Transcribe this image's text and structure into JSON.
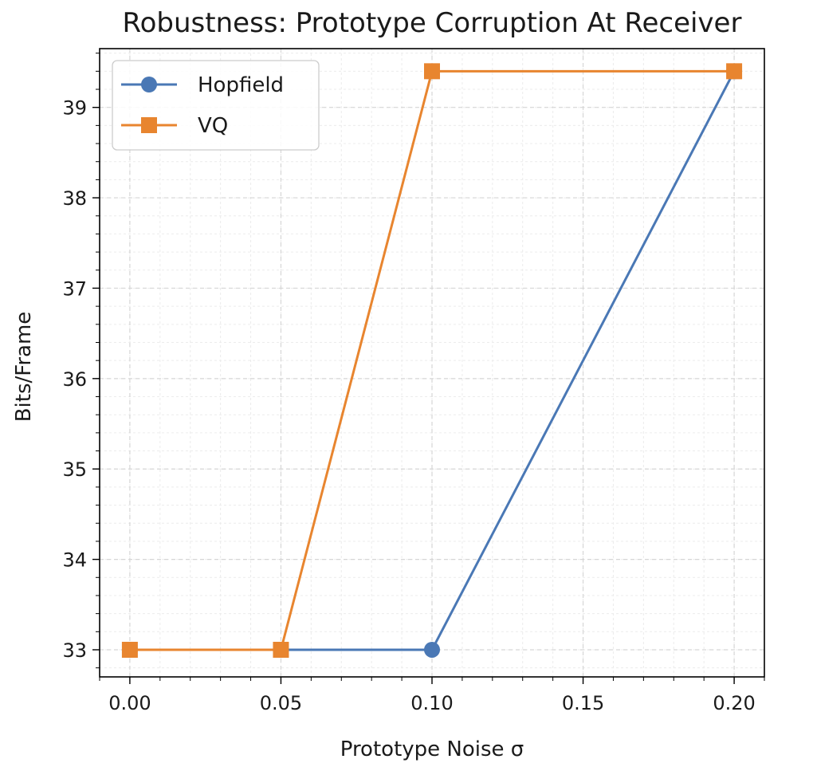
{
  "chart_data": {
    "type": "line",
    "title": "Robustness: Prototype Corruption At Receiver",
    "xlabel": "Prototype Noise σ",
    "ylabel": "Bits/Frame",
    "xlim": [
      -0.01,
      0.21
    ],
    "ylim": [
      32.7,
      39.65
    ],
    "x_ticks": [
      0.0,
      0.05,
      0.1,
      0.15,
      0.2
    ],
    "x_tick_labels": [
      "0.00",
      "0.05",
      "0.10",
      "0.15",
      "0.20"
    ],
    "y_ticks": [
      33,
      34,
      35,
      36,
      37,
      38,
      39
    ],
    "y_tick_labels": [
      "33",
      "34",
      "35",
      "36",
      "37",
      "38",
      "39"
    ],
    "grid": true,
    "legend_position": "top-left",
    "series": [
      {
        "name": "Hopfield",
        "marker": "circle",
        "color": "#4a78b5",
        "x": [
          0.0,
          0.05,
          0.1,
          0.2
        ],
        "y": [
          33.0,
          33.0,
          33.0,
          39.4
        ]
      },
      {
        "name": "VQ",
        "marker": "square",
        "color": "#e8852f",
        "x": [
          0.0,
          0.05,
          0.1,
          0.2
        ],
        "y": [
          33.0,
          33.0,
          39.4,
          39.4
        ]
      }
    ]
  }
}
